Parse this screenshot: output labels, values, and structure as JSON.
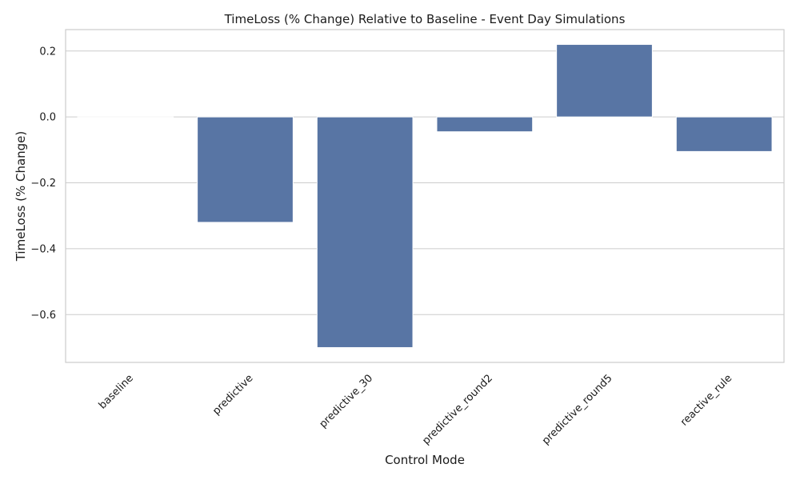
{
  "chart_data": {
    "type": "bar",
    "title": "TimeLoss (% Change) Relative to Baseline - Event Day Simulations",
    "xlabel": "Control Mode",
    "ylabel": "TimeLoss (% Change)",
    "categories": [
      "baseline",
      "predictive",
      "predictive_30",
      "predictive_round2",
      "predictive_round5",
      "reactive_rule"
    ],
    "values": [
      0.0,
      -0.32,
      -0.7,
      -0.045,
      0.22,
      -0.105
    ],
    "ylim": [
      -0.745,
      0.265
    ],
    "yticks": [
      0.2,
      0.0,
      -0.2,
      -0.4,
      -0.6
    ],
    "ytick_labels": [
      "0.2",
      "0.0",
      "−0.2",
      "−0.4",
      "−0.6"
    ],
    "grid": "horizontal",
    "bar_color": "#5875a4"
  }
}
